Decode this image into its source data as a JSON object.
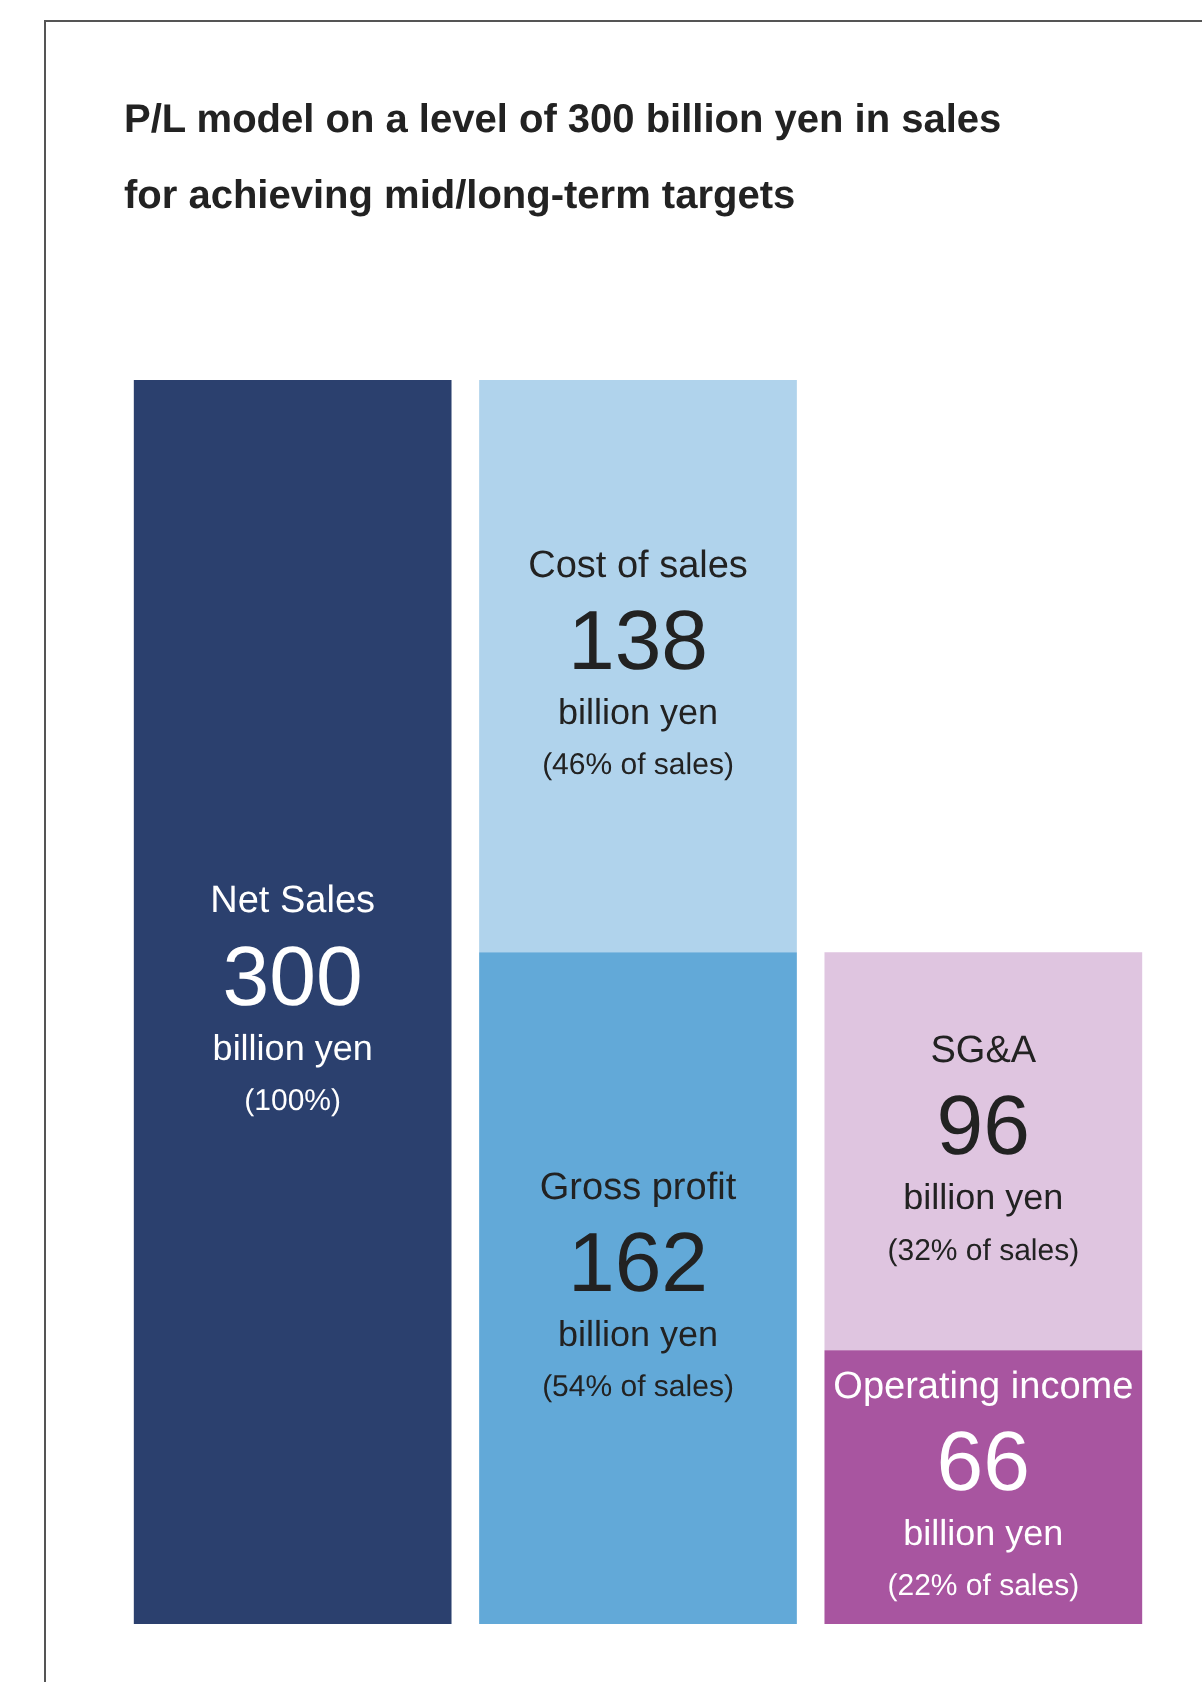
{
  "chart_data": {
    "type": "bar",
    "title": "P/L model on a level of 300 billion yen in sales for achieving mid/long-term targets",
    "categories": [
      null,
      null,
      null
    ],
    "stacked": true,
    "tick_labels": false,
    "data_labels": true,
    "series": [
      {
        "name": "Net Sales",
        "color": "#2b406e",
        "values": [
          300,
          null,
          null
        ],
        "value_labels": [
          "300\nbillion yen\n(100%)",
          null,
          null
        ]
      },
      {
        "name": "Gross profit",
        "color": "#62a9d8",
        "values": [
          null,
          162,
          null
        ],
        "value_labels": [
          null,
          "162\nbillion yen\n(54% of sales)",
          null
        ]
      },
      {
        "name": "Cost of sales",
        "color": "#b0d3ec",
        "values": [
          null,
          138,
          null
        ],
        "value_labels": [
          null,
          "138\nbillion yen\n(46% of sales)",
          null
        ]
      },
      {
        "name": "Operating income",
        "color": "#a855a0",
        "values": [
          null,
          null,
          66
        ],
        "value_labels": [
          null,
          null,
          "66\nbillion yen\n(22% of sales)"
        ]
      },
      {
        "name": "SG&A",
        "color": "#dfc5e0",
        "values": [
          null,
          null,
          96
        ],
        "value_labels": [
          null,
          null,
          "96\nbillion yen\n(32% of sales)"
        ]
      }
    ]
  }
}
